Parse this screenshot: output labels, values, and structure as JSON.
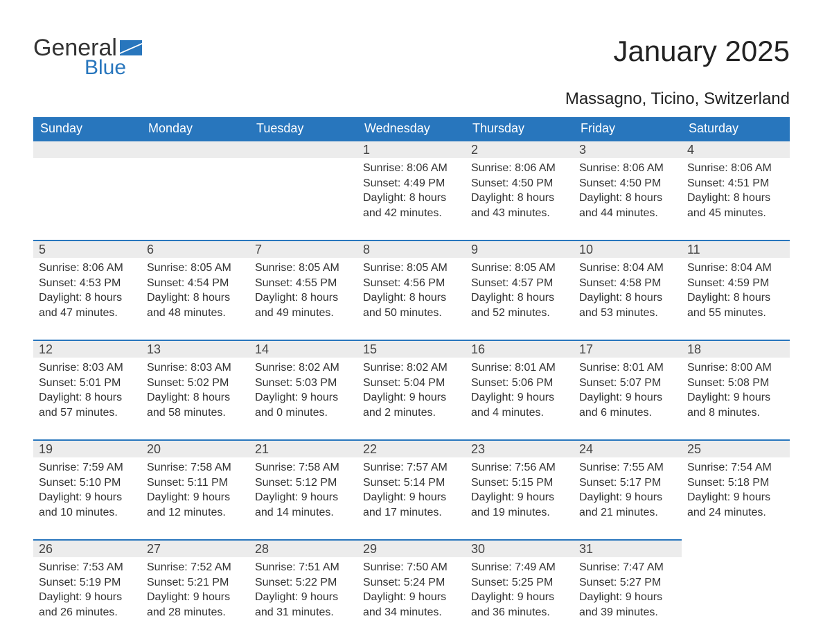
{
  "logo": {
    "general": "General",
    "blue": "Blue"
  },
  "title": "January 2025",
  "location": "Massagno, Ticino, Switzerland",
  "colors": {
    "header_bg": "#2876bd",
    "header_text": "#ffffff",
    "daynum_bg": "#ececec",
    "daynum_border": "#2876bd",
    "body_text": "#333333",
    "page_bg": "#ffffff"
  },
  "typography": {
    "title_fontsize": 42,
    "location_fontsize": 24,
    "header_fontsize": 18,
    "daynum_fontsize": 18,
    "body_fontsize": 16
  },
  "day_headers": [
    "Sunday",
    "Monday",
    "Tuesday",
    "Wednesday",
    "Thursday",
    "Friday",
    "Saturday"
  ],
  "weeks": [
    [
      null,
      null,
      null,
      {
        "n": "1",
        "sunrise": "Sunrise: 8:06 AM",
        "sunset": "Sunset: 4:49 PM",
        "d1": "Daylight: 8 hours",
        "d2": "and 42 minutes."
      },
      {
        "n": "2",
        "sunrise": "Sunrise: 8:06 AM",
        "sunset": "Sunset: 4:50 PM",
        "d1": "Daylight: 8 hours",
        "d2": "and 43 minutes."
      },
      {
        "n": "3",
        "sunrise": "Sunrise: 8:06 AM",
        "sunset": "Sunset: 4:50 PM",
        "d1": "Daylight: 8 hours",
        "d2": "and 44 minutes."
      },
      {
        "n": "4",
        "sunrise": "Sunrise: 8:06 AM",
        "sunset": "Sunset: 4:51 PM",
        "d1": "Daylight: 8 hours",
        "d2": "and 45 minutes."
      }
    ],
    [
      {
        "n": "5",
        "sunrise": "Sunrise: 8:06 AM",
        "sunset": "Sunset: 4:53 PM",
        "d1": "Daylight: 8 hours",
        "d2": "and 47 minutes."
      },
      {
        "n": "6",
        "sunrise": "Sunrise: 8:05 AM",
        "sunset": "Sunset: 4:54 PM",
        "d1": "Daylight: 8 hours",
        "d2": "and 48 minutes."
      },
      {
        "n": "7",
        "sunrise": "Sunrise: 8:05 AM",
        "sunset": "Sunset: 4:55 PM",
        "d1": "Daylight: 8 hours",
        "d2": "and 49 minutes."
      },
      {
        "n": "8",
        "sunrise": "Sunrise: 8:05 AM",
        "sunset": "Sunset: 4:56 PM",
        "d1": "Daylight: 8 hours",
        "d2": "and 50 minutes."
      },
      {
        "n": "9",
        "sunrise": "Sunrise: 8:05 AM",
        "sunset": "Sunset: 4:57 PM",
        "d1": "Daylight: 8 hours",
        "d2": "and 52 minutes."
      },
      {
        "n": "10",
        "sunrise": "Sunrise: 8:04 AM",
        "sunset": "Sunset: 4:58 PM",
        "d1": "Daylight: 8 hours",
        "d2": "and 53 minutes."
      },
      {
        "n": "11",
        "sunrise": "Sunrise: 8:04 AM",
        "sunset": "Sunset: 4:59 PM",
        "d1": "Daylight: 8 hours",
        "d2": "and 55 minutes."
      }
    ],
    [
      {
        "n": "12",
        "sunrise": "Sunrise: 8:03 AM",
        "sunset": "Sunset: 5:01 PM",
        "d1": "Daylight: 8 hours",
        "d2": "and 57 minutes."
      },
      {
        "n": "13",
        "sunrise": "Sunrise: 8:03 AM",
        "sunset": "Sunset: 5:02 PM",
        "d1": "Daylight: 8 hours",
        "d2": "and 58 minutes."
      },
      {
        "n": "14",
        "sunrise": "Sunrise: 8:02 AM",
        "sunset": "Sunset: 5:03 PM",
        "d1": "Daylight: 9 hours",
        "d2": "and 0 minutes."
      },
      {
        "n": "15",
        "sunrise": "Sunrise: 8:02 AM",
        "sunset": "Sunset: 5:04 PM",
        "d1": "Daylight: 9 hours",
        "d2": "and 2 minutes."
      },
      {
        "n": "16",
        "sunrise": "Sunrise: 8:01 AM",
        "sunset": "Sunset: 5:06 PM",
        "d1": "Daylight: 9 hours",
        "d2": "and 4 minutes."
      },
      {
        "n": "17",
        "sunrise": "Sunrise: 8:01 AM",
        "sunset": "Sunset: 5:07 PM",
        "d1": "Daylight: 9 hours",
        "d2": "and 6 minutes."
      },
      {
        "n": "18",
        "sunrise": "Sunrise: 8:00 AM",
        "sunset": "Sunset: 5:08 PM",
        "d1": "Daylight: 9 hours",
        "d2": "and 8 minutes."
      }
    ],
    [
      {
        "n": "19",
        "sunrise": "Sunrise: 7:59 AM",
        "sunset": "Sunset: 5:10 PM",
        "d1": "Daylight: 9 hours",
        "d2": "and 10 minutes."
      },
      {
        "n": "20",
        "sunrise": "Sunrise: 7:58 AM",
        "sunset": "Sunset: 5:11 PM",
        "d1": "Daylight: 9 hours",
        "d2": "and 12 minutes."
      },
      {
        "n": "21",
        "sunrise": "Sunrise: 7:58 AM",
        "sunset": "Sunset: 5:12 PM",
        "d1": "Daylight: 9 hours",
        "d2": "and 14 minutes."
      },
      {
        "n": "22",
        "sunrise": "Sunrise: 7:57 AM",
        "sunset": "Sunset: 5:14 PM",
        "d1": "Daylight: 9 hours",
        "d2": "and 17 minutes."
      },
      {
        "n": "23",
        "sunrise": "Sunrise: 7:56 AM",
        "sunset": "Sunset: 5:15 PM",
        "d1": "Daylight: 9 hours",
        "d2": "and 19 minutes."
      },
      {
        "n": "24",
        "sunrise": "Sunrise: 7:55 AM",
        "sunset": "Sunset: 5:17 PM",
        "d1": "Daylight: 9 hours",
        "d2": "and 21 minutes."
      },
      {
        "n": "25",
        "sunrise": "Sunrise: 7:54 AM",
        "sunset": "Sunset: 5:18 PM",
        "d1": "Daylight: 9 hours",
        "d2": "and 24 minutes."
      }
    ],
    [
      {
        "n": "26",
        "sunrise": "Sunrise: 7:53 AM",
        "sunset": "Sunset: 5:19 PM",
        "d1": "Daylight: 9 hours",
        "d2": "and 26 minutes."
      },
      {
        "n": "27",
        "sunrise": "Sunrise: 7:52 AM",
        "sunset": "Sunset: 5:21 PM",
        "d1": "Daylight: 9 hours",
        "d2": "and 28 minutes."
      },
      {
        "n": "28",
        "sunrise": "Sunrise: 7:51 AM",
        "sunset": "Sunset: 5:22 PM",
        "d1": "Daylight: 9 hours",
        "d2": "and 31 minutes."
      },
      {
        "n": "29",
        "sunrise": "Sunrise: 7:50 AM",
        "sunset": "Sunset: 5:24 PM",
        "d1": "Daylight: 9 hours",
        "d2": "and 34 minutes."
      },
      {
        "n": "30",
        "sunrise": "Sunrise: 7:49 AM",
        "sunset": "Sunset: 5:25 PM",
        "d1": "Daylight: 9 hours",
        "d2": "and 36 minutes."
      },
      {
        "n": "31",
        "sunrise": "Sunrise: 7:47 AM",
        "sunset": "Sunset: 5:27 PM",
        "d1": "Daylight: 9 hours",
        "d2": "and 39 minutes."
      },
      null
    ]
  ]
}
